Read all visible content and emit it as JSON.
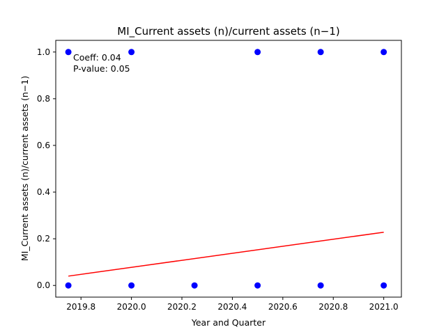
{
  "chart_data": {
    "type": "scatter",
    "title": "MI_Current assets (n)/current assets (n−1)",
    "xlabel": "Year and Quarter",
    "ylabel": "MI_Current assets (n)/current assets (n−1)",
    "xlim": [
      2019.7,
      2021.07
    ],
    "ylim": [
      -0.05,
      1.05
    ],
    "x_ticks": [
      2019.8,
      2020.0,
      2020.2,
      2020.4,
      2020.6,
      2020.8,
      2021.0
    ],
    "x_tick_labels": [
      "2019.8",
      "2020.0",
      "2020.2",
      "2020.4",
      "2020.6",
      "2020.8",
      "2021.0"
    ],
    "y_ticks": [
      0.0,
      0.2,
      0.4,
      0.6,
      0.8,
      1.0
    ],
    "y_tick_labels": [
      "0.0",
      "0.2",
      "0.4",
      "0.6",
      "0.8",
      "1.0"
    ],
    "grid": false,
    "series": [
      {
        "points": [
          {
            "x": 2019.75,
            "y": 1.0
          },
          {
            "x": 2019.75,
            "y": 0.0
          },
          {
            "x": 2020.0,
            "y": 1.0
          },
          {
            "x": 2020.0,
            "y": 0.0
          },
          {
            "x": 2020.25,
            "y": 0.0
          },
          {
            "x": 2020.5,
            "y": 1.0
          },
          {
            "x": 2020.5,
            "y": 0.0
          },
          {
            "x": 2020.75,
            "y": 1.0
          },
          {
            "x": 2020.75,
            "y": 0.0
          },
          {
            "x": 2021.0,
            "y": 1.0
          },
          {
            "x": 2021.0,
            "y": 0.0
          }
        ],
        "color": "#0000ff"
      }
    ],
    "regression_line": {
      "x": [
        2019.75,
        2021.0
      ],
      "y": [
        0.04,
        0.228
      ],
      "color": "#ff0000"
    },
    "annotation_lines": [
      "Coeff: 0.04",
      "P-value: 0.05"
    ]
  }
}
